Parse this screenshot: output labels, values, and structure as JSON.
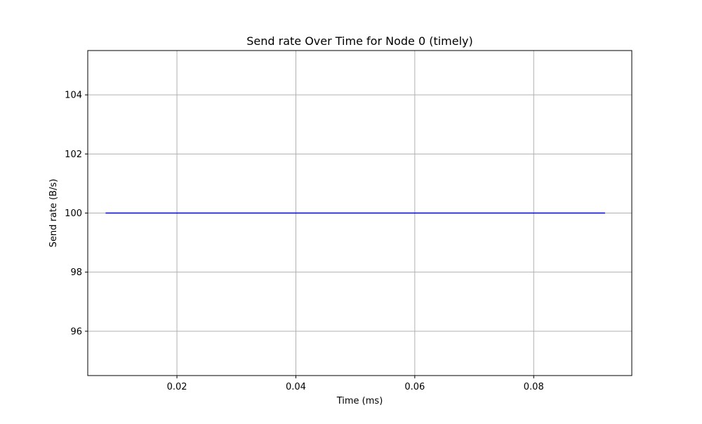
{
  "chart_data": {
    "type": "line",
    "title": "Send rate Over Time for Node 0 (timely)",
    "xlabel": "Time (ms)",
    "ylabel": "Send rate (B/s)",
    "xlim": [
      0.005,
      0.0965
    ],
    "ylim": [
      94.5,
      105.5
    ],
    "xticks": [
      0.02,
      0.04,
      0.06,
      0.08
    ],
    "xtick_labels": [
      "0.02",
      "0.04",
      "0.06",
      "0.08"
    ],
    "yticks": [
      96,
      98,
      100,
      102,
      104
    ],
    "ytick_labels": [
      "96",
      "98",
      "100",
      "102",
      "104"
    ],
    "grid": true,
    "series": [
      {
        "color": "#0000ff",
        "x": [
          0.008,
          0.092
        ],
        "values": [
          100,
          100
        ]
      }
    ]
  }
}
